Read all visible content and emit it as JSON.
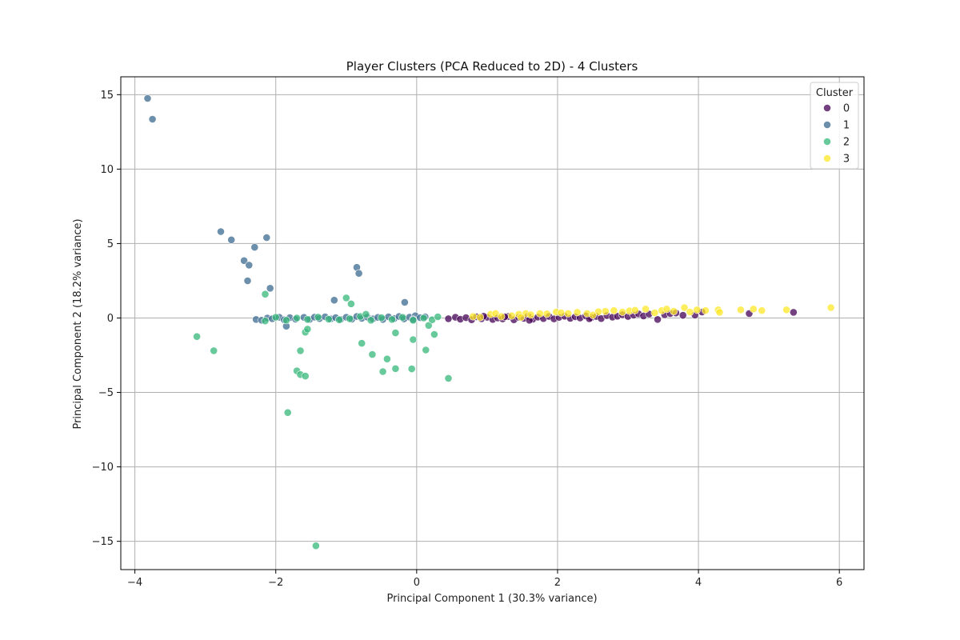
{
  "chart_data": {
    "type": "scatter",
    "title": "Player Clusters (PCA Reduced to 2D) - 4 Clusters",
    "xlabel": "Principal Component 1 (30.3% variance)",
    "ylabel": "Principal Component 2 (18.2% variance)",
    "xlim": [
      -4.2,
      6.35
    ],
    "ylim": [
      -16.9,
      16.2
    ],
    "x_ticks": [
      -4,
      -2,
      0,
      2,
      4,
      6
    ],
    "y_ticks": [
      -15,
      -10,
      -5,
      0,
      5,
      10,
      15
    ],
    "x_tick_labels": [
      "−4",
      "−2",
      "0",
      "2",
      "4",
      "6"
    ],
    "y_tick_labels": [
      "−15",
      "−10",
      "−5",
      "0",
      "5",
      "10",
      "15"
    ],
    "grid": true,
    "legend": {
      "title": "Cluster",
      "position": "top-right"
    },
    "series": [
      {
        "name": "0",
        "color": "#440154",
        "points": [
          [
            0.45,
            -0.05
          ],
          [
            0.55,
            0.05
          ],
          [
            0.62,
            -0.08
          ],
          [
            0.7,
            0.02
          ],
          [
            0.78,
            -0.12
          ],
          [
            0.85,
            0.08
          ],
          [
            0.92,
            -0.05
          ],
          [
            1.0,
            0.05
          ],
          [
            1.08,
            -0.1
          ],
          [
            1.15,
            0.0
          ],
          [
            1.22,
            -0.06
          ],
          [
            1.3,
            0.1
          ],
          [
            1.38,
            -0.12
          ],
          [
            1.45,
            0.04
          ],
          [
            1.52,
            -0.02
          ],
          [
            1.58,
            0.12
          ],
          [
            1.65,
            -0.08
          ],
          [
            1.72,
            0.06
          ],
          [
            1.8,
            -0.04
          ],
          [
            1.88,
            0.1
          ],
          [
            1.95,
            -0.06
          ],
          [
            2.02,
            0.04
          ],
          [
            2.1,
            0.12
          ],
          [
            2.18,
            -0.02
          ],
          [
            2.25,
            0.08
          ],
          [
            2.32,
            0.0
          ],
          [
            2.4,
            0.14
          ],
          [
            2.48,
            0.02
          ],
          [
            2.55,
            0.1
          ],
          [
            2.62,
            -0.04
          ],
          [
            2.7,
            0.16
          ],
          [
            2.78,
            0.06
          ],
          [
            2.85,
            0.12
          ],
          [
            2.92,
            0.22
          ],
          [
            3.0,
            0.1
          ],
          [
            3.08,
            0.2
          ],
          [
            3.15,
            0.28
          ],
          [
            3.22,
            0.14
          ],
          [
            3.3,
            0.26
          ],
          [
            3.42,
            -0.1
          ],
          [
            3.52,
            0.22
          ],
          [
            3.6,
            0.3
          ],
          [
            3.68,
            0.34
          ],
          [
            3.78,
            0.18
          ],
          [
            3.95,
            0.2
          ],
          [
            4.05,
            0.4
          ],
          [
            4.72,
            0.3
          ],
          [
            5.35,
            0.38
          ],
          [
            1.6,
            -0.15
          ],
          [
            1.25,
            0.08
          ],
          [
            2.45,
            -0.05
          ],
          [
            0.95,
            0.12
          ]
        ]
      },
      {
        "name": "1",
        "color": "#3b6a8f",
        "points": [
          [
            -3.82,
            14.75
          ],
          [
            -3.75,
            13.35
          ],
          [
            -2.78,
            5.8
          ],
          [
            -2.63,
            5.25
          ],
          [
            -2.3,
            4.75
          ],
          [
            -2.13,
            5.4
          ],
          [
            -2.45,
            3.85
          ],
          [
            -2.38,
            3.55
          ],
          [
            -2.4,
            2.5
          ],
          [
            -2.08,
            2.0
          ],
          [
            -0.85,
            3.4
          ],
          [
            -0.82,
            3.0
          ],
          [
            -1.17,
            1.2
          ],
          [
            -0.17,
            1.05
          ],
          [
            -1.85,
            -0.55
          ],
          [
            -2.28,
            -0.1
          ],
          [
            -2.2,
            -0.15
          ],
          [
            -2.12,
            0.0
          ],
          [
            -2.05,
            -0.05
          ],
          [
            -1.95,
            0.05
          ],
          [
            -1.88,
            -0.12
          ],
          [
            -1.8,
            0.02
          ],
          [
            -1.72,
            -0.08
          ],
          [
            -1.6,
            0.04
          ],
          [
            -1.52,
            -0.1
          ],
          [
            -1.45,
            0.06
          ],
          [
            -1.38,
            -0.04
          ],
          [
            -1.3,
            0.08
          ],
          [
            -1.22,
            -0.06
          ],
          [
            -1.15,
            0.02
          ],
          [
            -1.08,
            -0.1
          ],
          [
            -1.0,
            0.05
          ],
          [
            -0.92,
            -0.08
          ],
          [
            -0.85,
            0.1
          ],
          [
            -0.78,
            -0.02
          ],
          [
            -0.7,
            0.06
          ],
          [
            -0.62,
            -0.06
          ],
          [
            -0.55,
            0.04
          ],
          [
            -0.48,
            -0.1
          ],
          [
            -0.4,
            0.08
          ],
          [
            -0.32,
            -0.04
          ],
          [
            -0.25,
            0.1
          ],
          [
            -0.18,
            -0.06
          ],
          [
            -0.1,
            0.06
          ],
          [
            -0.02,
            0.15
          ],
          [
            0.05,
            0.02
          ],
          [
            0.12,
            0.08
          ],
          [
            -0.05,
            -0.1
          ]
        ]
      },
      {
        "name": "2",
        "color": "#35b779",
        "points": [
          [
            -3.12,
            -1.25
          ],
          [
            -2.88,
            -2.2
          ],
          [
            -2.15,
            1.6
          ],
          [
            -1.83,
            -6.35
          ],
          [
            -1.43,
            -15.3
          ],
          [
            -1.7,
            -3.55
          ],
          [
            -1.65,
            -3.8
          ],
          [
            -1.58,
            -3.9
          ],
          [
            -1.65,
            -2.2
          ],
          [
            -1.58,
            -0.95
          ],
          [
            -1.55,
            -0.75
          ],
          [
            -1.0,
            1.35
          ],
          [
            -0.93,
            0.95
          ],
          [
            -0.78,
            -1.7
          ],
          [
            -0.63,
            -2.45
          ],
          [
            -0.48,
            -3.6
          ],
          [
            -0.42,
            -2.75
          ],
          [
            -0.3,
            -3.4
          ],
          [
            -0.3,
            -1.0
          ],
          [
            -0.07,
            -3.42
          ],
          [
            -0.05,
            -1.45
          ],
          [
            0.13,
            -2.15
          ],
          [
            0.25,
            -1.1
          ],
          [
            0.45,
            -4.05
          ],
          [
            0.17,
            -0.5
          ],
          [
            -2.15,
            -0.2
          ],
          [
            -2.0,
            0.05
          ],
          [
            -1.85,
            -0.15
          ],
          [
            -1.7,
            0.0
          ],
          [
            -1.55,
            -0.1
          ],
          [
            -1.4,
            0.06
          ],
          [
            -1.25,
            -0.08
          ],
          [
            -1.1,
            -0.12
          ],
          [
            -0.95,
            -0.05
          ],
          [
            -0.8,
            0.1
          ],
          [
            -0.65,
            -0.15
          ],
          [
            -0.5,
            0.02
          ],
          [
            -0.35,
            -0.1
          ],
          [
            -0.2,
            0.04
          ],
          [
            -0.05,
            -0.15
          ],
          [
            0.1,
            0.0
          ],
          [
            0.22,
            -0.12
          ],
          [
            0.3,
            0.08
          ],
          [
            -0.72,
            0.25
          ]
        ]
      },
      {
        "name": "3",
        "color": "#fde725",
        "points": [
          [
            0.8,
            0.1
          ],
          [
            0.9,
            0.05
          ],
          [
            1.05,
            0.25
          ],
          [
            1.12,
            0.3
          ],
          [
            1.2,
            0.1
          ],
          [
            1.35,
            0.15
          ],
          [
            1.45,
            0.25
          ],
          [
            1.55,
            0.3
          ],
          [
            1.62,
            0.22
          ],
          [
            1.75,
            0.3
          ],
          [
            1.85,
            0.28
          ],
          [
            1.98,
            0.4
          ],
          [
            2.05,
            0.35
          ],
          [
            2.15,
            0.3
          ],
          [
            2.28,
            0.38
          ],
          [
            2.42,
            0.3
          ],
          [
            2.58,
            0.42
          ],
          [
            2.68,
            0.45
          ],
          [
            2.8,
            0.5
          ],
          [
            2.92,
            0.4
          ],
          [
            3.02,
            0.48
          ],
          [
            3.1,
            0.52
          ],
          [
            3.25,
            0.6
          ],
          [
            3.38,
            0.35
          ],
          [
            3.48,
            0.5
          ],
          [
            3.55,
            0.6
          ],
          [
            3.65,
            0.45
          ],
          [
            3.8,
            0.7
          ],
          [
            3.88,
            0.4
          ],
          [
            3.98,
            0.55
          ],
          [
            4.1,
            0.5
          ],
          [
            4.28,
            0.55
          ],
          [
            4.3,
            0.38
          ],
          [
            4.6,
            0.55
          ],
          [
            4.78,
            0.6
          ],
          [
            4.9,
            0.5
          ],
          [
            5.25,
            0.55
          ],
          [
            5.88,
            0.7
          ],
          [
            1.48,
            0.05
          ],
          [
            2.5,
            0.2
          ]
        ]
      }
    ]
  }
}
